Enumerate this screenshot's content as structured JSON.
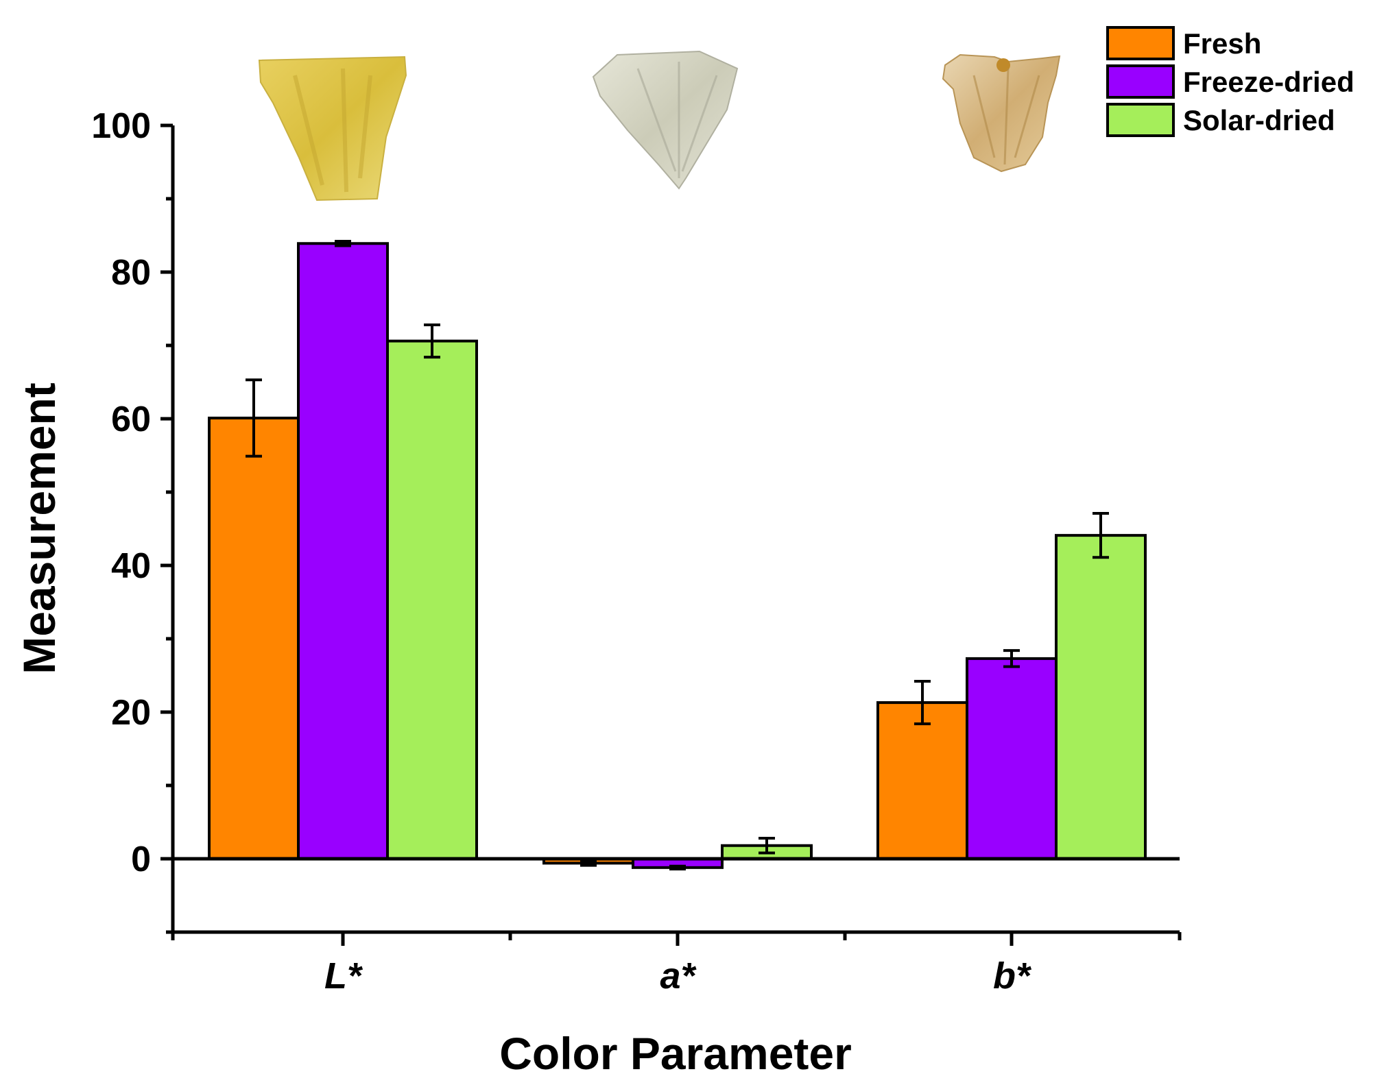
{
  "chart_data": {
    "type": "bar",
    "title": "",
    "xlabel": "Color Parameter",
    "ylabel": "Measurement",
    "categories": [
      "L*",
      "a*",
      "b*"
    ],
    "ylim": [
      -10,
      100
    ],
    "yticks": [
      0,
      20,
      40,
      60,
      80,
      100
    ],
    "series": [
      {
        "name": "Fresh",
        "color": "#FF8500",
        "values": [
          60.1,
          -0.6,
          21.3
        ],
        "errors": [
          5.2,
          0.3,
          2.9
        ]
      },
      {
        "name": "Freeze-dried",
        "color": "#9900FF",
        "values": [
          83.9,
          -1.2,
          27.3
        ],
        "errors": [
          0.3,
          0.2,
          1.1
        ]
      },
      {
        "name": "Solar-dried",
        "color": "#A5EE5A",
        "values": [
          70.6,
          1.8,
          44.1
        ],
        "errors": [
          2.2,
          1.0,
          3.0
        ]
      }
    ],
    "legend_position": "top-right",
    "sample_images": [
      {
        "name": "fresh-pineapple-sample"
      },
      {
        "name": "freeze-dried-pineapple-sample"
      },
      {
        "name": "solar-dried-pineapple-sample"
      }
    ]
  }
}
